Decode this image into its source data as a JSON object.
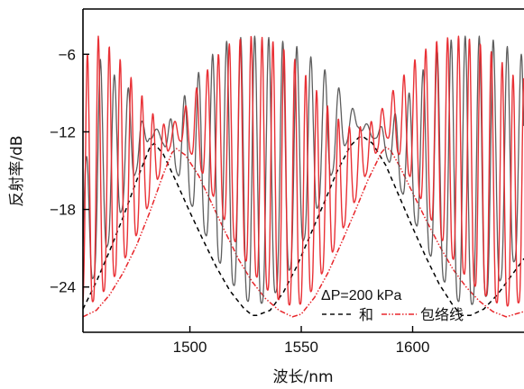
{
  "chart_data": {
    "type": "line",
    "xlabel": "波长/nm",
    "ylabel": "反射率/dB",
    "xlim": [
      1452,
      1650
    ],
    "ylim": [
      -27.5,
      -2.5
    ],
    "xticks": [
      1500,
      1550,
      1600
    ],
    "yticks": [
      -6,
      -12,
      -18,
      -24
    ],
    "xtick_labels": [
      "1500",
      "1550",
      "1600"
    ],
    "ytick_labels": [
      "−6",
      "−12",
      "−18",
      "−24"
    ],
    "annotation": {
      "pressure_label": "ΔP=200 kPa",
      "legend_sum_text": "和",
      "legend_envelope_text": "包络线"
    },
    "colors": {
      "sum": "#555555",
      "envelope": "#e8262b",
      "axis": "#000000"
    },
    "series": [
      {
        "name": "和",
        "style": "solid",
        "color": "#555555",
        "fringe_period_nm": 6.3,
        "fringe_peaks": [
          [
            1453.5,
            -14.0
          ],
          [
            1459.8,
            -6.4
          ],
          [
            1466.1,
            -7.6
          ],
          [
            1472.4,
            -8.6
          ],
          [
            1478.7,
            -11.2
          ],
          [
            1485.0,
            -11.8
          ],
          [
            1491.3,
            -11.0
          ],
          [
            1497.6,
            -9.2
          ],
          [
            1503.9,
            -7.4
          ],
          [
            1510.2,
            -6.0
          ],
          [
            1516.5,
            -5.0
          ],
          [
            1522.8,
            -4.7
          ],
          [
            1529.1,
            -4.6
          ],
          [
            1535.4,
            -4.7
          ],
          [
            1541.7,
            -5.0
          ],
          [
            1548.0,
            -5.4
          ],
          [
            1554.3,
            -6.2
          ],
          [
            1560.6,
            -7.2
          ],
          [
            1566.9,
            -8.6
          ],
          [
            1573.2,
            -10.2
          ],
          [
            1579.5,
            -11.4
          ],
          [
            1585.8,
            -11.6
          ],
          [
            1592.1,
            -10.6
          ],
          [
            1598.4,
            -9.0
          ],
          [
            1604.7,
            -7.2
          ],
          [
            1611.0,
            -5.8
          ],
          [
            1617.3,
            -4.9
          ],
          [
            1623.6,
            -4.6
          ],
          [
            1629.9,
            -4.6
          ],
          [
            1636.2,
            -4.9
          ],
          [
            1642.5,
            -5.4
          ],
          [
            1648.8,
            -6.0
          ]
        ],
        "envelope_dips": [
          [
            1527.0,
            -26.3
          ],
          [
            1622.0,
            -26.3
          ]
        ]
      },
      {
        "name": "包络线",
        "style": "solid",
        "color": "#e8262b",
        "fringe_period_nm": 4.9,
        "fringe_peaks": [
          [
            1454.0,
            -6.0
          ],
          [
            1458.9,
            -4.6
          ],
          [
            1463.8,
            -5.4
          ],
          [
            1468.7,
            -6.4
          ],
          [
            1473.6,
            -7.8
          ],
          [
            1478.5,
            -9.2
          ],
          [
            1483.4,
            -10.6
          ],
          [
            1488.3,
            -11.4
          ],
          [
            1493.2,
            -11.2
          ],
          [
            1498.1,
            -10.0
          ],
          [
            1503.0,
            -8.6
          ],
          [
            1507.9,
            -7.2
          ],
          [
            1512.8,
            -6.0
          ],
          [
            1517.7,
            -5.2
          ],
          [
            1522.6,
            -4.8
          ],
          [
            1527.5,
            -4.6
          ],
          [
            1532.4,
            -4.7
          ],
          [
            1537.3,
            -5.0
          ],
          [
            1542.2,
            -5.6
          ],
          [
            1547.1,
            -6.4
          ],
          [
            1552.0,
            -7.6
          ],
          [
            1556.9,
            -8.8
          ],
          [
            1561.8,
            -10.0
          ],
          [
            1566.7,
            -11.0
          ],
          [
            1571.6,
            -11.6
          ],
          [
            1576.5,
            -11.6
          ],
          [
            1581.4,
            -11.2
          ],
          [
            1586.3,
            -10.2
          ],
          [
            1591.2,
            -8.8
          ],
          [
            1596.1,
            -7.6
          ],
          [
            1601.0,
            -6.4
          ],
          [
            1605.9,
            -5.6
          ],
          [
            1610.8,
            -5.0
          ],
          [
            1615.7,
            -4.7
          ],
          [
            1620.6,
            -4.6
          ],
          [
            1625.5,
            -4.8
          ],
          [
            1630.4,
            -5.2
          ],
          [
            1635.3,
            -5.8
          ],
          [
            1640.2,
            -6.6
          ],
          [
            1645.1,
            -7.6
          ]
        ],
        "envelope_dips": [
          [
            1546.0,
            -26.3
          ],
          [
            1641.0,
            -26.3
          ]
        ]
      },
      {
        "name": "和 envelope",
        "style": "dash",
        "color": "#000000",
        "x": [
          1452,
          1458,
          1464,
          1470,
          1476,
          1482,
          1484,
          1488,
          1494,
          1500,
          1506,
          1512,
          1518,
          1524,
          1528,
          1530,
          1536,
          1542,
          1548,
          1554,
          1560,
          1566,
          1572,
          1576,
          1578,
          1582,
          1588,
          1594,
          1600,
          1606,
          1612,
          1618,
          1622,
          1626,
          1632,
          1638,
          1644,
          1650
        ],
        "y": [
          -25.7,
          -23.6,
          -21.2,
          -18.6,
          -15.8,
          -13.2,
          -12.9,
          -13.7,
          -15.9,
          -18.2,
          -20.4,
          -22.5,
          -24.3,
          -25.6,
          -26.2,
          -26.2,
          -25.8,
          -24.4,
          -22.4,
          -20.0,
          -17.6,
          -15.1,
          -13.1,
          -12.4,
          -12.4,
          -12.9,
          -14.6,
          -17.0,
          -19.4,
          -21.7,
          -23.8,
          -25.4,
          -26.2,
          -26.2,
          -25.7,
          -24.6,
          -23.2,
          -21.8
        ]
      },
      {
        "name": "包络线",
        "style": "dashdot",
        "color": "#e8262b",
        "x": [
          1452,
          1458,
          1464,
          1470,
          1476,
          1482,
          1488,
          1492,
          1494,
          1498,
          1504,
          1510,
          1516,
          1522,
          1528,
          1534,
          1540,
          1546,
          1550,
          1556,
          1562,
          1568,
          1574,
          1580,
          1586,
          1588,
          1590,
          1594,
          1600,
          1606,
          1612,
          1618,
          1624,
          1630,
          1636,
          1642,
          1646,
          1650
        ],
        "y": [
          -26.3,
          -25.8,
          -24.6,
          -22.9,
          -20.8,
          -18.2,
          -15.3,
          -13.6,
          -13.3,
          -13.8,
          -15.4,
          -17.6,
          -19.8,
          -21.9,
          -23.6,
          -24.9,
          -25.8,
          -26.3,
          -26.1,
          -24.8,
          -22.9,
          -20.6,
          -18.2,
          -15.7,
          -13.6,
          -13.2,
          -13.4,
          -14.6,
          -16.7,
          -18.8,
          -20.8,
          -22.6,
          -24.0,
          -25.1,
          -25.9,
          -26.3,
          -26.1,
          -25.9
        ]
      }
    ]
  }
}
